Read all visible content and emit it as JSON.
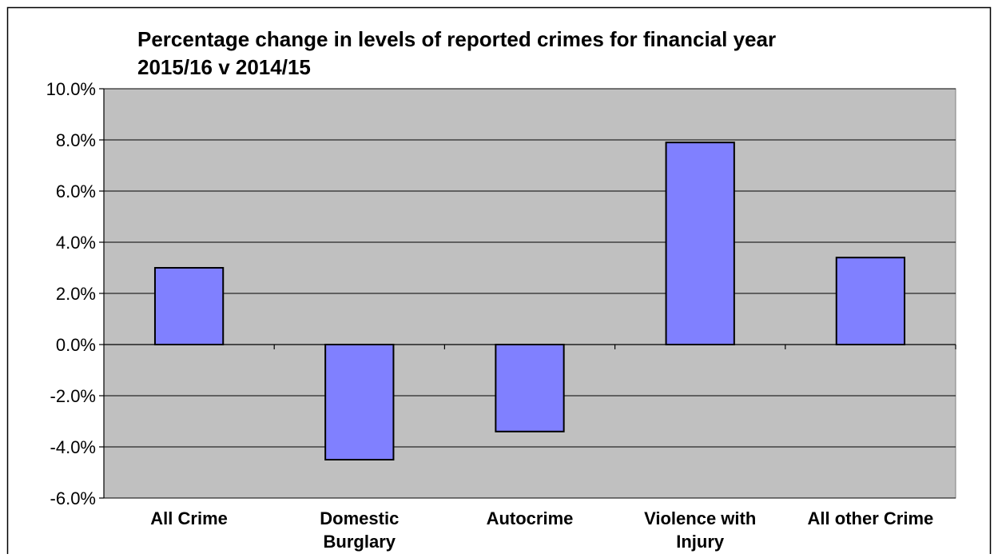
{
  "chart_data": {
    "type": "bar",
    "title_lines": [
      "Percentage change in levels of reported crimes for financial year",
      "2015/16 v 2014/15"
    ],
    "categories": [
      [
        "All Crime"
      ],
      [
        "Domestic",
        "Burglary"
      ],
      [
        "Autocrime"
      ],
      [
        "Violence with",
        "Injury"
      ],
      [
        "All other Crime"
      ]
    ],
    "values": [
      3.0,
      -4.5,
      -3.4,
      7.9,
      3.4
    ],
    "ylim": [
      -6.0,
      10.0
    ],
    "yticks": [
      "-6.0%",
      "-4.0%",
      "-2.0%",
      "0.0%",
      "2.0%",
      "4.0%",
      "6.0%",
      "8.0%",
      "10.0%"
    ],
    "ytick_values": [
      -6,
      -4,
      -2,
      0,
      2,
      4,
      6,
      8,
      10
    ],
    "grid": true,
    "legend": "none",
    "colors": {
      "plot_background": "#c0c0c0",
      "bar_fill": "#8080ff",
      "bar_stroke": "#000000",
      "gridline": "#000000"
    }
  }
}
